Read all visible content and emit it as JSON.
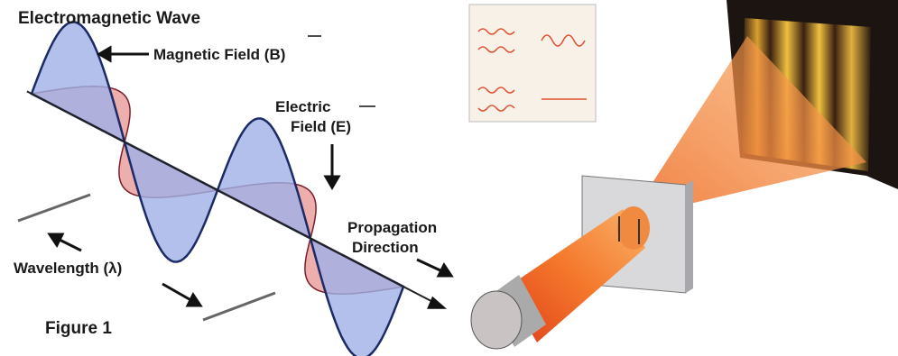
{
  "figure": {
    "title": "Electromagnetic Wave",
    "magnetic_field": "Magnetic Field (B)",
    "electric_field": [
      "Electric",
      "Field (E)"
    ],
    "propagation": [
      "Propagation",
      "Direction"
    ],
    "wavelength": "Wavelength (λ)",
    "caption": "Figure 1"
  }
}
